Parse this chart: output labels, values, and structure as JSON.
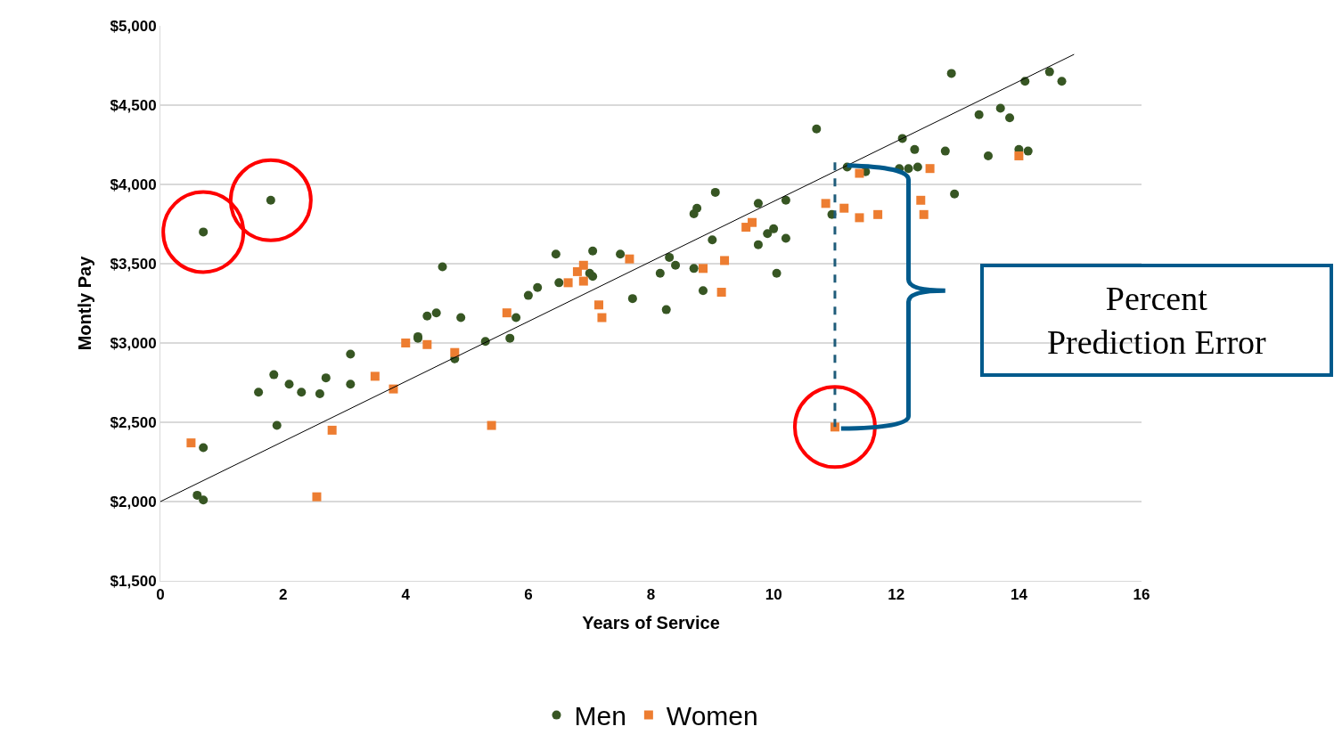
{
  "chart_data": {
    "type": "scatter",
    "xlabel": "Years of Service",
    "ylabel": "Montly Pay",
    "xlim": [
      0,
      16
    ],
    "xticks": [
      0,
      2,
      4,
      6,
      8,
      10,
      12,
      14,
      16
    ],
    "ylim": [
      1500,
      5000
    ],
    "yticks": [
      {
        "value": 1500,
        "label": "$1,500"
      },
      {
        "value": 2000,
        "label": "$2,000"
      },
      {
        "value": 2500,
        "label": "$2,500"
      },
      {
        "value": 3000,
        "label": "$3,000"
      },
      {
        "value": 3500,
        "label": "$3,500"
      },
      {
        "value": 4000,
        "label": "$4,000"
      },
      {
        "value": 4500,
        "label": "$4,500"
      },
      {
        "value": 5000,
        "label": "$5,000"
      }
    ],
    "grid": "y",
    "legend": "bottom",
    "series": [
      {
        "name": "Men",
        "color": "#375623",
        "marker": "circle",
        "x": [
          0.7,
          1.8,
          0.7,
          0.6,
          0.7,
          1.6,
          1.85,
          1.9,
          2.1,
          2.3,
          2.6,
          2.7,
          3.1,
          3.1,
          4.2,
          4.2,
          4.35,
          4.5,
          4.6,
          4.9,
          4.8,
          5.3,
          5.7,
          5.8,
          6.0,
          6.15,
          6.45,
          6.5,
          7.05,
          7.0,
          7.05,
          7.5,
          7.7,
          8.15,
          8.25,
          8.3,
          8.4,
          8.7,
          8.7,
          8.75,
          8.85,
          9.0,
          9.05,
          9.75,
          9.75,
          9.9,
          10.0,
          10.05,
          10.2,
          10.2,
          10.7,
          10.95,
          11.2,
          11.5,
          12.05,
          12.1,
          12.2,
          12.3,
          12.35,
          12.8,
          12.9,
          12.95,
          13.35,
          13.5,
          13.7,
          13.85,
          14.0,
          14.1,
          14.15,
          14.5,
          14.7
        ],
        "values": [
          3700,
          3900,
          2340,
          2040,
          2010,
          2690,
          2800,
          2480,
          2740,
          2690,
          2680,
          2780,
          2740,
          2930,
          3040,
          3030,
          3170,
          3190,
          3480,
          3160,
          2900,
          3010,
          3030,
          3160,
          3300,
          3350,
          3560,
          3380,
          3580,
          3440,
          3420,
          3560,
          3280,
          3440,
          3210,
          3540,
          3490,
          3470,
          3815,
          3850,
          3330,
          3650,
          3950,
          3880,
          3620,
          3690,
          3720,
          3440,
          3660,
          3900,
          4350,
          3810,
          4110,
          4080,
          4100,
          4290,
          4100,
          4220,
          4110,
          4210,
          4700,
          3940,
          4440,
          4180,
          4480,
          4420,
          4220,
          4650,
          4210,
          4710,
          4650
        ]
      },
      {
        "name": "Women",
        "color": "#ed7d31",
        "marker": "square",
        "x": [
          0.5,
          2.55,
          2.8,
          3.5,
          3.8,
          4.0,
          4.35,
          4.8,
          5.4,
          5.65,
          6.65,
          6.8,
          6.9,
          6.9,
          7.15,
          7.2,
          7.65,
          8.85,
          9.15,
          9.2,
          9.55,
          9.65,
          10.85,
          11.0,
          11.15,
          11.4,
          11.4,
          11.7,
          12.4,
          12.45,
          12.55,
          14.0
        ],
        "values": [
          2370,
          2030,
          2450,
          2790,
          2710,
          3000,
          2990,
          2940,
          2480,
          3190,
          3380,
          3450,
          3490,
          3390,
          3240,
          3160,
          3530,
          3470,
          3320,
          3520,
          3730,
          3760,
          3880,
          2470,
          3850,
          4070,
          3790,
          3810,
          3900,
          3810,
          4100,
          4180
        ]
      },
      {
        "type": "line",
        "color": "#000000",
        "x": [
          0,
          14.9
        ],
        "values": [
          2000,
          4820
        ]
      },
      {
        "type": "line",
        "color": "#1f5c7a",
        "line_style": "dashed",
        "x": [
          11,
          11
        ],
        "values": [
          2470,
          4140
        ]
      }
    ],
    "annotations": [
      "Percent\nPrediction Error"
    ]
  }
}
